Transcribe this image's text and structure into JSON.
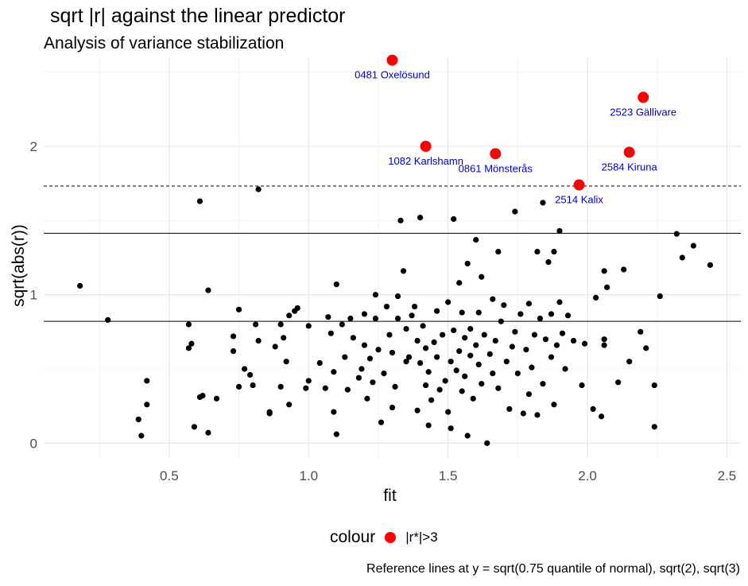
{
  "title": "sqrt |r| against the linear predictor",
  "subtitle": "Analysis of variance stabilization",
  "caption": "Reference lines at y = sqrt(0.75 quantile of normal), sqrt(2), sqrt(3)",
  "legend": {
    "title": "colour",
    "label": "|r*|>3",
    "color": "#ff0000"
  },
  "chart_data": {
    "type": "scatter",
    "xlabel": "fit",
    "ylabel": "sqrt(abs(r))",
    "xlim": [
      0.05,
      2.55
    ],
    "ylim": [
      -0.1,
      2.6
    ],
    "xticks": [
      0.5,
      1.0,
      1.5,
      2.0,
      2.5
    ],
    "xtick_labels": [
      "0.5",
      "1.0",
      "1.5",
      "2.0",
      "2.5"
    ],
    "yticks": [
      0,
      1,
      2
    ],
    "ytick_labels": [
      "0",
      "1",
      "2"
    ],
    "grid": true,
    "legend_position": "bottom",
    "reference_lines": [
      {
        "y": 0.821,
        "style": "solid"
      },
      {
        "y": 1.414,
        "style": "solid"
      },
      {
        "y": 1.732,
        "style": "dashed"
      }
    ],
    "series": [
      {
        "color": "#000000",
        "points": [
          [
            0.18,
            1.06
          ],
          [
            0.28,
            0.83
          ],
          [
            0.39,
            0.16
          ],
          [
            0.4,
            0.05
          ],
          [
            0.42,
            0.42
          ],
          [
            0.42,
            0.26
          ],
          [
            0.57,
            0.8
          ],
          [
            0.57,
            0.64
          ],
          [
            0.58,
            0.67
          ],
          [
            0.59,
            0.11
          ],
          [
            0.61,
            0.31
          ],
          [
            0.62,
            0.32
          ],
          [
            0.61,
            1.63
          ],
          [
            0.64,
            1.03
          ],
          [
            0.64,
            0.07
          ],
          [
            0.67,
            0.3
          ],
          [
            0.73,
            0.72
          ],
          [
            0.73,
            0.62
          ],
          [
            0.75,
            0.9
          ],
          [
            0.75,
            0.38
          ],
          [
            0.77,
            0.5
          ],
          [
            0.79,
            0.46
          ],
          [
            0.8,
            0.39
          ],
          [
            0.81,
            0.8
          ],
          [
            0.82,
            1.71
          ],
          [
            0.82,
            0.69
          ],
          [
            0.86,
            0.2
          ],
          [
            0.86,
            0.21
          ],
          [
            0.88,
            0.65
          ],
          [
            0.9,
            0.38
          ],
          [
            0.9,
            0.8
          ],
          [
            0.91,
            0.71
          ],
          [
            0.92,
            0.55
          ],
          [
            0.93,
            0.26
          ],
          [
            0.93,
            0.86
          ],
          [
            0.95,
            0.89
          ],
          [
            0.96,
            0.91
          ],
          [
            0.99,
            0.37
          ],
          [
            1.0,
            0.42
          ],
          [
            1.0,
            0.79
          ],
          [
            1.04,
            0.54
          ],
          [
            1.06,
            0.37
          ],
          [
            1.07,
            0.85
          ],
          [
            1.08,
            0.74
          ],
          [
            1.09,
            0.21
          ],
          [
            1.09,
            0.48
          ],
          [
            1.1,
            1.07
          ],
          [
            1.1,
            0.06
          ],
          [
            1.12,
            0.8
          ],
          [
            1.13,
            0.58
          ],
          [
            1.14,
            0.36
          ],
          [
            1.15,
            0.84
          ],
          [
            1.16,
            0.71
          ],
          [
            1.18,
            0.44
          ],
          [
            1.19,
            0.5
          ],
          [
            1.2,
            0.87
          ],
          [
            1.2,
            0.66
          ],
          [
            1.21,
            0.3
          ],
          [
            1.22,
            0.57
          ],
          [
            1.23,
            0.41
          ],
          [
            1.24,
            1.0
          ],
          [
            1.24,
            0.84
          ],
          [
            1.25,
            0.63
          ],
          [
            1.26,
            0.14
          ],
          [
            1.27,
            0.47
          ],
          [
            1.28,
            0.92
          ],
          [
            1.29,
            0.73
          ],
          [
            1.3,
            0.24
          ],
          [
            1.3,
            0.61
          ],
          [
            1.31,
            0.38
          ],
          [
            1.32,
            0.99
          ],
          [
            1.32,
            0.84
          ],
          [
            1.33,
            1.5
          ],
          [
            1.34,
            1.16
          ],
          [
            1.35,
            0.55
          ],
          [
            1.35,
            0.77
          ],
          [
            1.36,
            0.58
          ],
          [
            1.37,
            0.86
          ],
          [
            1.38,
            0.92
          ],
          [
            1.39,
            0.22
          ],
          [
            1.39,
            0.69
          ],
          [
            1.4,
            1.52
          ],
          [
            1.4,
            0.54
          ],
          [
            1.41,
            0.79
          ],
          [
            1.42,
            0.39
          ],
          [
            1.42,
            0.64
          ],
          [
            1.43,
            0.12
          ],
          [
            1.43,
            0.48
          ],
          [
            1.44,
            0.29
          ],
          [
            1.45,
            0.68
          ],
          [
            1.46,
            0.58
          ],
          [
            1.46,
            0.89
          ],
          [
            1.47,
            0.36
          ],
          [
            1.48,
            0.73
          ],
          [
            1.49,
            0.42
          ],
          [
            1.5,
            0.21
          ],
          [
            1.5,
            0.95
          ],
          [
            1.51,
            0.1
          ],
          [
            1.51,
            0.55
          ],
          [
            1.52,
            1.51
          ],
          [
            1.52,
            0.76
          ],
          [
            1.53,
            0.49
          ],
          [
            1.54,
            1.08
          ],
          [
            1.54,
            0.62
          ],
          [
            1.55,
            0.35
          ],
          [
            1.55,
            0.88
          ],
          [
            1.56,
            0.71
          ],
          [
            1.56,
            0.45
          ],
          [
            1.57,
            1.21
          ],
          [
            1.57,
            0.05
          ],
          [
            1.58,
            0.59
          ],
          [
            1.58,
            0.77
          ],
          [
            1.59,
            0.3
          ],
          [
            1.6,
            1.37
          ],
          [
            1.6,
            0.66
          ],
          [
            1.61,
            0.53
          ],
          [
            1.61,
            0.88
          ],
          [
            1.62,
            1.12
          ],
          [
            1.62,
            0.4
          ],
          [
            1.63,
            0.73
          ],
          [
            1.64,
            0.0
          ],
          [
            1.65,
            0.6
          ],
          [
            1.66,
            0.97
          ],
          [
            1.66,
            0.47
          ],
          [
            1.67,
            0.69
          ],
          [
            1.68,
            1.29
          ],
          [
            1.68,
            0.37
          ],
          [
            1.69,
            0.82
          ],
          [
            1.7,
            0.93
          ],
          [
            1.71,
            0.55
          ],
          [
            1.72,
            0.23
          ],
          [
            1.73,
            0.65
          ],
          [
            1.74,
            1.56
          ],
          [
            1.74,
            0.75
          ],
          [
            1.75,
            0.47
          ],
          [
            1.76,
            0.87
          ],
          [
            1.77,
            0.2
          ],
          [
            1.78,
            0.63
          ],
          [
            1.79,
            0.94
          ],
          [
            1.79,
            0.33
          ],
          [
            1.8,
            0.51
          ],
          [
            1.81,
            0.73
          ],
          [
            1.82,
            1.29
          ],
          [
            1.82,
            0.19
          ],
          [
            1.83,
            0.84
          ],
          [
            1.84,
            1.62
          ],
          [
            1.84,
            0.4
          ],
          [
            1.85,
            0.7
          ],
          [
            1.86,
            1.22
          ],
          [
            1.87,
            0.58
          ],
          [
            1.87,
            0.87
          ],
          [
            1.88,
            1.29
          ],
          [
            1.88,
            0.26
          ],
          [
            1.89,
            0.66
          ],
          [
            1.9,
            1.43
          ],
          [
            1.9,
            0.95
          ],
          [
            1.91,
            0.74
          ],
          [
            1.92,
            0.5
          ],
          [
            1.93,
            0.86
          ],
          [
            1.95,
            0.69
          ],
          [
            1.98,
            0.39
          ],
          [
            1.99,
            0.67
          ],
          [
            2.02,
            0.23
          ],
          [
            2.03,
            0.98
          ],
          [
            2.05,
            0.18
          ],
          [
            2.06,
            1.16
          ],
          [
            2.06,
            0.66
          ],
          [
            2.06,
            0.7
          ],
          [
            2.07,
            1.05
          ],
          [
            2.11,
            0.41
          ],
          [
            2.13,
            1.17
          ],
          [
            2.15,
            0.55
          ],
          [
            2.19,
            0.75
          ],
          [
            2.21,
            0.64
          ],
          [
            2.24,
            0.11
          ],
          [
            2.24,
            0.39
          ],
          [
            2.26,
            0.99
          ],
          [
            2.32,
            1.41
          ],
          [
            2.34,
            1.25
          ],
          [
            2.38,
            1.33
          ],
          [
            2.44,
            1.2
          ]
        ]
      },
      {
        "name": "|r*|>3",
        "color": "#ff0000",
        "points": [
          [
            1.3,
            2.58,
            "0481 Oxelösund"
          ],
          [
            2.2,
            2.33,
            "2523 Gällivare"
          ],
          [
            1.42,
            2.0,
            "1082 Karlshamn"
          ],
          [
            1.67,
            1.95,
            "0861 Mönsterås"
          ],
          [
            2.15,
            1.96,
            "2584 Kiruna"
          ],
          [
            1.97,
            1.74,
            "2514 Kalix"
          ]
        ]
      }
    ]
  }
}
